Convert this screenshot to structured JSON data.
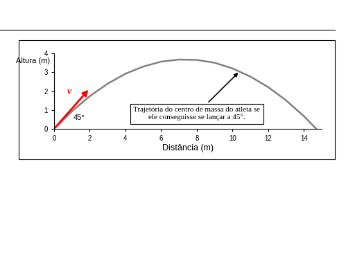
{
  "chart_data": {
    "type": "line",
    "x": [
      0,
      1,
      2,
      3,
      4,
      5,
      6,
      7,
      8,
      9,
      10,
      11,
      12,
      13,
      14,
      14.7
    ],
    "values": [
      0,
      0.93,
      1.73,
      2.39,
      2.92,
      3.3,
      3.56,
      3.67,
      3.65,
      3.5,
      3.2,
      2.77,
      2.21,
      1.51,
      0.67,
      0
    ],
    "color": "#808080",
    "xlabel": "Distância (m)",
    "ylabel": "Altura (m)",
    "xlim": [
      0,
      15
    ],
    "xticks": [
      0,
      2,
      4,
      6,
      8,
      10,
      12,
      14
    ],
    "ylim": [
      0,
      4
    ],
    "yticks": [
      0,
      1,
      2,
      3,
      4
    ],
    "grid": false,
    "annotations": [
      {
        "text": "Trajetória do centro de massa do atleta se\nele conseguisse se lançar a 45°.",
        "x": 8.0,
        "y": 0.8,
        "arrow_to": [
          10.4,
          3.05
        ]
      },
      {
        "text": "45°",
        "x": 1.4,
        "y": 0.6
      }
    ],
    "vector": {
      "label": "v",
      "start": [
        0,
        0
      ],
      "end": [
        2,
        2.15
      ],
      "label_at": [
        0.85,
        1.95
      ],
      "color": "#ff0000"
    }
  }
}
